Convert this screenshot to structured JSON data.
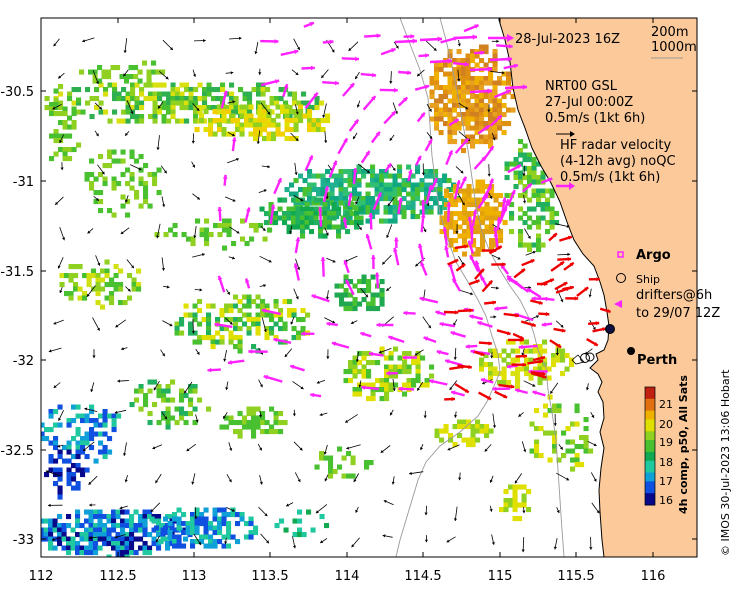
{
  "map": {
    "lon_range": [
      112,
      116.3
    ],
    "lat_range": [
      -33.1,
      -30.05
    ],
    "x_ticks": [
      "112",
      "112.5",
      "113",
      "113.5",
      "114",
      "114.5",
      "115",
      "115.5",
      "116"
    ],
    "y_ticks": [
      "-30.5",
      "-31",
      "-31.5",
      "-32",
      "-32.5",
      "-33"
    ],
    "land_color": "#fbc99a",
    "coast_color": "#000000"
  },
  "legend_top": {
    "date": "28-Jul-2023 16Z",
    "isobath_200": "200m",
    "isobath_1000": "1000m"
  },
  "annotations": {
    "nrt_line1": "NRT00 GSL",
    "nrt_line2": "27-Jul 00:00Z",
    "nrt_line3": "0.5m/s (1kt 6h)",
    "hf_line1": "HF radar velocity",
    "hf_line2": "(4-12h avg) noQC",
    "hf_line3": "0.5m/s (1kt 6h)",
    "argo": "Argo",
    "ship": "Ship",
    "drifters_line1": "drifters@6h",
    "drifters_line2": "to 29/07 12Z",
    "city": "Perth"
  },
  "colorbar": {
    "ticks": [
      "21",
      "20",
      "19",
      "18",
      "17",
      "16"
    ],
    "label": "4h comp, p50, All Sats",
    "colors": [
      "#08088a",
      "#1050e0",
      "#10a0d8",
      "#20c8a0",
      "#10a850",
      "#48c030",
      "#90d020",
      "#e0e000",
      "#f0b000",
      "#e07010",
      "#c02010"
    ]
  },
  "credit": "© IMOS 30-Jul-2023 13:06 Hobart",
  "colors": {
    "magenta": "#ff22ff",
    "red": "#ee0000",
    "black": "#000000"
  }
}
